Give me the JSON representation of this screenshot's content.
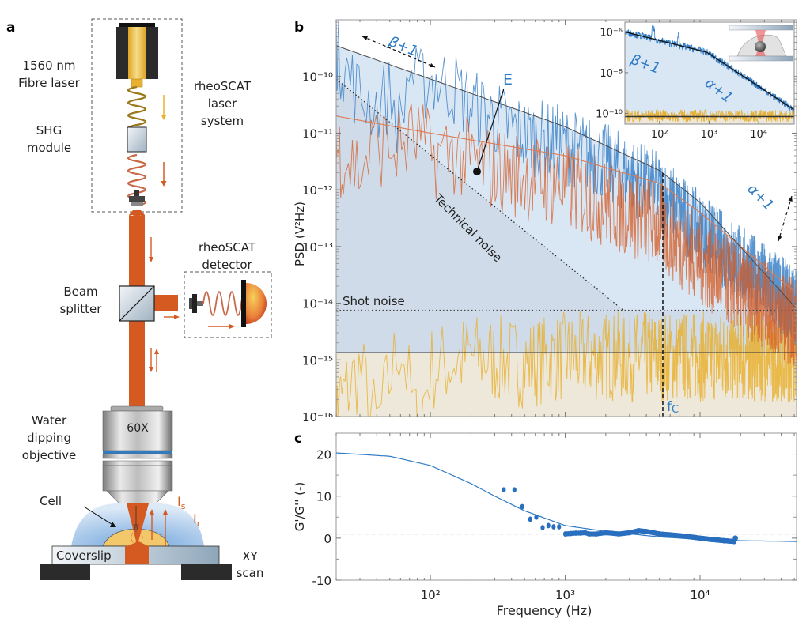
{
  "panel_a": {
    "label": "a",
    "laser_label_line1": "1560 nm",
    "laser_label_line2": "Fibre laser",
    "shg_label_line1": "SHG",
    "shg_label_line2": "module",
    "laser_system_line1": "rheoSCAT",
    "laser_system_line2": "laser",
    "laser_system_line3": "system",
    "detector_line1": "rheoSCAT",
    "detector_line2": "detector",
    "beam_splitter_line1": "Beam",
    "beam_splitter_line2": "splitter",
    "objective_line1": "Water",
    "objective_line2": "dipping",
    "objective_line3": "objective",
    "objective_mag": "60X",
    "cell_label": "Cell",
    "coverslip_label": "Coverslip",
    "stage_line1": "XY",
    "stage_line2": "scan",
    "intensity_s": "I",
    "intensity_s_sub": "s",
    "intensity_r": "I",
    "intensity_r_sub": "r",
    "colors": {
      "beam": "#d55a22",
      "yellow_fibre": "#e8b030",
      "water": "#9ec3ea",
      "cell": "#f3c86b"
    }
  },
  "chart_data": [
    {
      "panel": "b",
      "type": "line",
      "title": "",
      "xlabel": "Frequency (Hz)",
      "ylabel": "PSD (V²Hz)",
      "xscale": "log",
      "yscale": "log",
      "xlim": [
        20,
        52000
      ],
      "ylim": [
        1e-16,
        1e-09
      ],
      "ytick_labels": [
        "10⁻¹⁰",
        "10⁻¹¹",
        "10⁻¹²",
        "10⁻¹³",
        "10⁻¹⁴",
        "10⁻¹⁵",
        "10⁻¹⁶"
      ],
      "ytick_values": [
        1e-10,
        1e-11,
        1e-12,
        1e-13,
        1e-14,
        1e-15,
        1e-16
      ],
      "series": [
        {
          "name": "Cell PSD (blue)",
          "color": "#2f7bc4",
          "x": [
            20,
            30,
            40,
            50,
            60,
            70,
            80,
            100,
            150,
            200,
            300,
            500,
            1000,
            2000,
            5000,
            10000,
            20000,
            50000
          ],
          "y": [
            4.5e-10,
            7e-11,
            5e-11,
            8e-11,
            2e-11,
            2.5e-10,
            1e-10,
            1.5e-10,
            1e-10,
            5e-11,
            3e-11,
            1.5e-11,
            1e-11,
            5e-12,
            1.5e-12,
            3e-13,
            8e-14,
            1.5e-14
          ]
        },
        {
          "name": "Reference PSD (orange)",
          "color": "#d55a22",
          "x": [
            20,
            30,
            40,
            50,
            60,
            80,
            100,
            150,
            200,
            300,
            500,
            1000,
            2000,
            5000,
            10000,
            20000,
            50000
          ],
          "y": [
            9e-12,
            4e-12,
            1.2e-11,
            9e-12,
            1e-11,
            1.5e-11,
            7e-12,
            8e-12,
            5e-12,
            4e-12,
            3e-12,
            2e-12,
            1e-12,
            4e-13,
            1e-13,
            3e-14,
            8e-15
          ]
        },
        {
          "name": "Background PSD (yellow)",
          "color": "#e8b030",
          "x": [
            20,
            30,
            40,
            60,
            80,
            100,
            200,
            500,
            1000,
            5000,
            10000,
            50000
          ],
          "y": [
            2.5e-16,
            1.2e-15,
            1.1e-16,
            4e-15,
            1e-16,
            1.2e-15,
            2e-15,
            1.5e-15,
            2e-15,
            2e-15,
            2e-15,
            2e-15
          ]
        },
        {
          "name": "Model fit E",
          "color": "#555555",
          "x": [
            20,
            100,
            1000,
            5000,
            10000,
            52000
          ],
          "y": [
            3.5e-10,
            9e-11,
            1.3e-11,
            2.2e-12,
            6e-13,
            8e-15
          ]
        },
        {
          "name": "Orange fit",
          "color": "#e07a50",
          "x": [
            20,
            100,
            1000,
            5000,
            10000,
            52000
          ],
          "y": [
            2e-11,
            1e-11,
            4e-12,
            1.3e-12,
            4e-13,
            1.5e-14
          ]
        }
      ],
      "reference_lines": [
        {
          "name": "Technical noise",
          "style": "dotted",
          "x": [
            20,
            2700
          ],
          "y": [
            9e-11,
            7.5e-15
          ]
        },
        {
          "name": "Shot noise",
          "style": "dotted",
          "y": 7.5e-15
        },
        {
          "name": "Background level",
          "style": "solid",
          "y": 1.35e-15
        },
        {
          "name": "f_C",
          "style": "dashed",
          "x": 5300
        }
      ],
      "annotations": {
        "beta": "β+1",
        "alpha": "α+1",
        "E": "E",
        "technical_noise": "Technical noise",
        "shot_noise": "Shot noise",
        "fc": "f",
        "fc_sub": "C"
      },
      "inset": {
        "xlim": [
          20,
          52000
        ],
        "ylim": [
          3e-11,
          3e-06
        ],
        "xtick_labels": [
          "10²",
          "10³",
          "10⁴"
        ],
        "xtick_values": [
          100,
          1000,
          10000
        ],
        "ytick_labels": [
          "10⁻⁶",
          "10⁻⁸",
          "10⁻¹⁰"
        ],
        "ytick_values": [
          1e-06,
          1e-08,
          1e-10
        ],
        "fit_x": [
          20,
          900,
          52000
        ],
        "fit_y": [
          1e-06,
          1e-07,
          1.5e-10
        ],
        "background_level": 7e-11,
        "labels": {
          "beta": "β+1",
          "alpha": "α+1"
        }
      }
    },
    {
      "panel": "c",
      "type": "scatter",
      "title": "",
      "xlabel": "Frequency (Hz)",
      "ylabel": "G'/G'' (-)",
      "xscale": "log",
      "xlim": [
        20,
        52000
      ],
      "ylim": [
        -10,
        25
      ],
      "xtick_labels": [
        "10²",
        "10³",
        "10⁴"
      ],
      "xtick_values": [
        100,
        1000,
        10000
      ],
      "ytick_labels": [
        "20",
        "10",
        "0",
        "-10"
      ],
      "ytick_values": [
        20,
        10,
        0,
        -10
      ],
      "reference_line": {
        "style": "dashed",
        "y": 1
      },
      "fit": {
        "x": [
          20,
          50,
          100,
          200,
          300,
          500,
          1000,
          2000,
          5000,
          10000,
          20000,
          52000
        ],
        "y": [
          20.3,
          19.5,
          17.3,
          13,
          10,
          6.5,
          3,
          1.6,
          0.3,
          -0.3,
          -0.6,
          -0.8
        ]
      },
      "points": {
        "x": [
          350,
          420,
          480,
          550,
          610,
          680,
          750,
          820,
          900,
          1000,
          1100,
          1200,
          1300,
          1400,
          1500,
          1700,
          2000,
          2500,
          3000,
          3500,
          4000,
          5000,
          6000,
          7000,
          8000,
          10000,
          12000,
          15000,
          18000
        ],
        "y": [
          11.5,
          11.5,
          7.5,
          4.5,
          5,
          2.5,
          3,
          2.7,
          2.7,
          1,
          1.1,
          1.2,
          1.2,
          1.3,
          1,
          1,
          1.3,
          1,
          1.3,
          1.8,
          1.6,
          1,
          0.8,
          0.6,
          0.4,
          0,
          -0.3,
          -0.6,
          -0.8
        ]
      }
    }
  ],
  "panel_b": {
    "label": "b"
  },
  "panel_c": {
    "label": "c"
  }
}
